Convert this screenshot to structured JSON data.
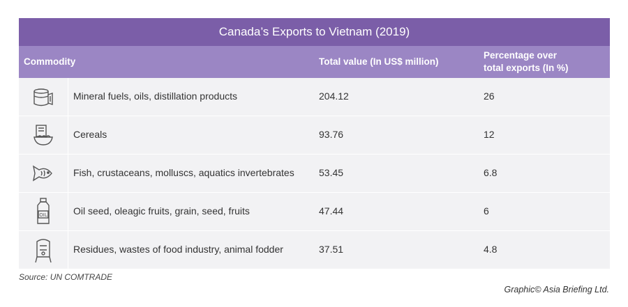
{
  "chart_data": {
    "type": "table",
    "title": "Canada’s Exports to Vietnam (2019)",
    "columns": [
      "Commodity",
      "Total value (In US$ million)",
      "Percentage over",
      "total exports (In %)"
    ],
    "rows": [
      {
        "icon": "oil-barrel-icon",
        "commodity": "Mineral fuels, oils, distillation products",
        "value": "204.12",
        "percentage": "26"
      },
      {
        "icon": "cereal-bowl-icon",
        "commodity": "Cereals",
        "value": "93.76",
        "percentage": "12"
      },
      {
        "icon": "fish-icon",
        "commodity": "Fish, crustaceans, molluscs, aquatics invertebrates",
        "value": "53.45",
        "percentage": "6.8"
      },
      {
        "icon": "oil-bottle-icon",
        "commodity": "Oil seed, oleagic fruits, grain, seed, fruits",
        "value": "47.44",
        "percentage": "6"
      },
      {
        "icon": "fodder-silo-icon",
        "commodity": "Residues, wastes of food industry, animal fodder",
        "value": "37.51",
        "percentage": "4.8"
      }
    ]
  },
  "icon_oil_label": "OIL",
  "source": "Source: UN COMTRADE",
  "credit": "Graphic© Asia Briefing Ltd.",
  "colors": {
    "title_bg": "#7b5ea8",
    "header_bg": "#9b86c4",
    "row_bg": "#f2f2f4"
  }
}
